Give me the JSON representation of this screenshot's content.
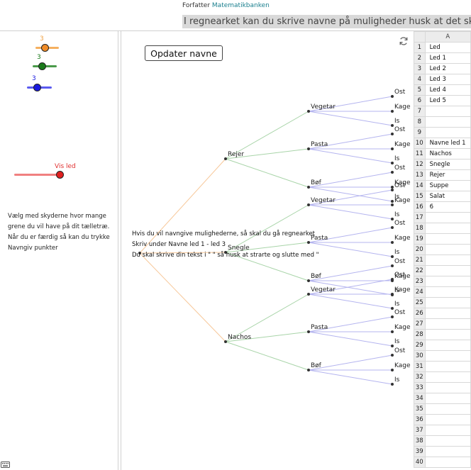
{
  "header": {
    "author_label": "Forfatter",
    "author_name": "Matematikbanken",
    "instruction": "I regnearket kan du skrive navne på muligheder husk at det skal skrives i"
  },
  "left_panel": {
    "sliders": [
      {
        "value": "3",
        "color": "#f0a040"
      },
      {
        "value": "3",
        "color": "#1a7a1a"
      },
      {
        "value": "3",
        "color": "#1a1ae0"
      }
    ],
    "vis_led_label": "Vis led",
    "vis_led_color": "#e03030",
    "instructions": [
      "Vælg med skyderne hvor mange",
      "grene du vil have på dit tælletræ.",
      "Når du er færdig så kan du trykke",
      "Navngiv punkter"
    ]
  },
  "graphics": {
    "update_button": "Opdater navne",
    "help_lines": [
      "Hvis du vil navngive mulighederne, så skal du gå regnearket",
      "Skriv under Navne led 1 - led 3",
      "Du skal skrive din tekst i \" \" så husk at strarte og slutte med \""
    ],
    "tree": {
      "level1": [
        "Rejer",
        "Snegle",
        "Nachos"
      ],
      "level2": [
        "Vegetar",
        "Pasta",
        "Bøf"
      ],
      "level3": [
        "Ost",
        "Kage",
        "Is"
      ]
    }
  },
  "spreadsheet": {
    "column_header": "A",
    "rows": [
      {
        "n": "1",
        "a": "Led"
      },
      {
        "n": "2",
        "a": "Led 1"
      },
      {
        "n": "3",
        "a": "Led 2"
      },
      {
        "n": "4",
        "a": "Led 3"
      },
      {
        "n": "5",
        "a": "Led 4"
      },
      {
        "n": "6",
        "a": "Led 5"
      },
      {
        "n": "7",
        "a": ""
      },
      {
        "n": "8",
        "a": ""
      },
      {
        "n": "9",
        "a": ""
      },
      {
        "n": "10",
        "a": "Navne led 1"
      },
      {
        "n": "11",
        "a": "Nachos"
      },
      {
        "n": "12",
        "a": "Snegle"
      },
      {
        "n": "13",
        "a": "Rejer"
      },
      {
        "n": "14",
        "a": "Suppe"
      },
      {
        "n": "15",
        "a": "Salat"
      },
      {
        "n": "16",
        "a": "6"
      },
      {
        "n": "17",
        "a": ""
      },
      {
        "n": "18",
        "a": ""
      },
      {
        "n": "19",
        "a": ""
      },
      {
        "n": "20",
        "a": ""
      },
      {
        "n": "21",
        "a": ""
      },
      {
        "n": "22",
        "a": ""
      },
      {
        "n": "23",
        "a": ""
      },
      {
        "n": "24",
        "a": ""
      },
      {
        "n": "25",
        "a": ""
      },
      {
        "n": "26",
        "a": ""
      },
      {
        "n": "27",
        "a": ""
      },
      {
        "n": "28",
        "a": ""
      },
      {
        "n": "29",
        "a": ""
      },
      {
        "n": "30",
        "a": ""
      },
      {
        "n": "31",
        "a": ""
      },
      {
        "n": "32",
        "a": ""
      },
      {
        "n": "33",
        "a": ""
      },
      {
        "n": "34",
        "a": ""
      },
      {
        "n": "35",
        "a": ""
      },
      {
        "n": "36",
        "a": ""
      },
      {
        "n": "37",
        "a": ""
      },
      {
        "n": "38",
        "a": ""
      },
      {
        "n": "39",
        "a": ""
      },
      {
        "n": "40",
        "a": ""
      }
    ]
  },
  "icons": {
    "refresh": "refresh-icon",
    "keyboard": "keyboard-icon"
  }
}
